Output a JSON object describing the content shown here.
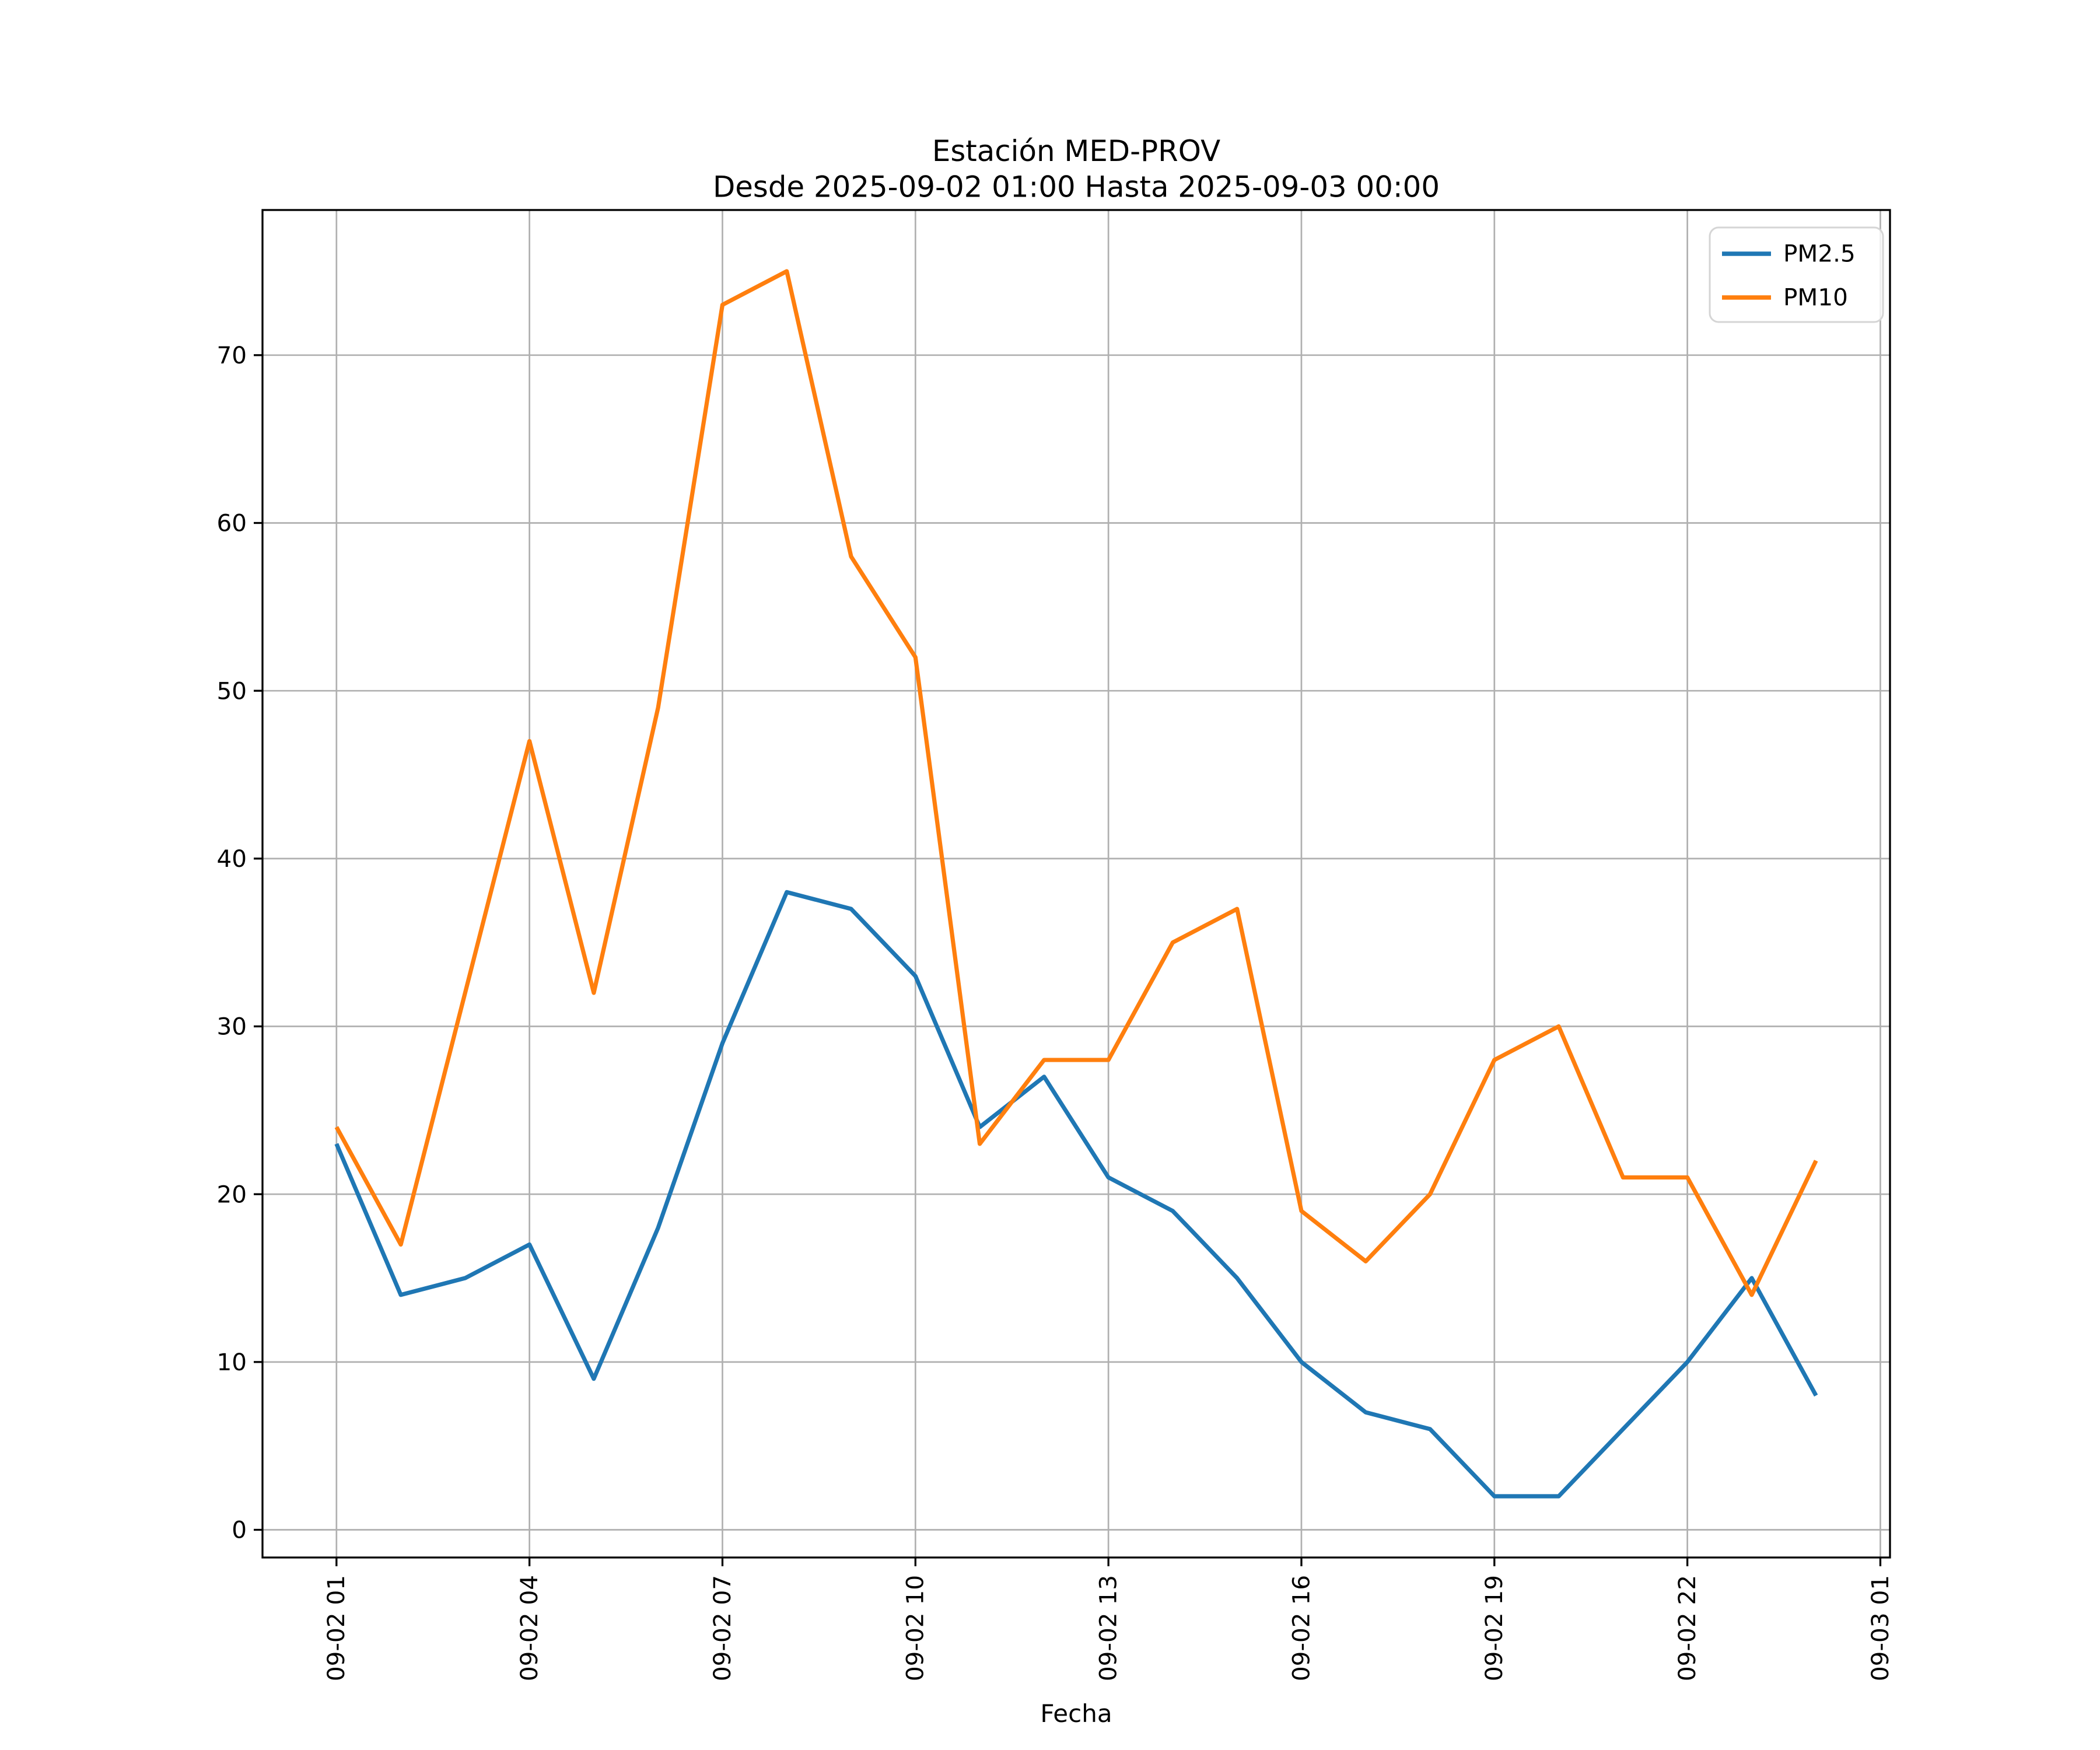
{
  "title": {
    "line1": "Estación MED-PROV",
    "line2": "Desde 2025-09-02 01:00 Hasta 2025-09-03 00:00"
  },
  "chart_data": {
    "type": "line",
    "title": "Estación MED-PROV",
    "subtitle": "Desde 2025-09-02 01:00 Hasta 2025-09-03 00:00",
    "xlabel": "Fecha",
    "ylabel": "",
    "grid": true,
    "legend_position": "upper right",
    "x": [
      "2025-09-02 01:00",
      "2025-09-02 02:00",
      "2025-09-02 03:00",
      "2025-09-02 04:00",
      "2025-09-02 05:00",
      "2025-09-02 06:00",
      "2025-09-02 07:00",
      "2025-09-02 08:00",
      "2025-09-02 09:00",
      "2025-09-02 10:00",
      "2025-09-02 11:00",
      "2025-09-02 12:00",
      "2025-09-02 13:00",
      "2025-09-02 14:00",
      "2025-09-02 15:00",
      "2025-09-02 16:00",
      "2025-09-02 17:00",
      "2025-09-02 18:00",
      "2025-09-02 19:00",
      "2025-09-02 20:00",
      "2025-09-02 21:00",
      "2025-09-02 22:00",
      "2025-09-02 23:00",
      "2025-09-03 00:00"
    ],
    "series": [
      {
        "name": "PM2.5",
        "color": "#1f77b4",
        "values": [
          23,
          14,
          15,
          17,
          9,
          18,
          29,
          38,
          37,
          33,
          24,
          27,
          21,
          19,
          15,
          10,
          7,
          6,
          2,
          2,
          6,
          10,
          15,
          8
        ]
      },
      {
        "name": "PM10",
        "color": "#ff7f0e",
        "values": [
          24,
          17,
          32,
          47,
          32,
          49,
          73,
          75,
          58,
          52,
          23,
          28,
          28,
          35,
          37,
          19,
          16,
          20,
          28,
          30,
          21,
          21,
          14,
          22
        ]
      }
    ],
    "x_tick_labels": [
      "09-02 01",
      "09-02 04",
      "09-02 07",
      "09-02 10",
      "09-02 13",
      "09-02 16",
      "09-02 19",
      "09-02 22",
      "09-03 01"
    ],
    "x_tick_hours": [
      0,
      3,
      6,
      9,
      12,
      15,
      18,
      21,
      24
    ],
    "y_ticks": [
      0,
      10,
      20,
      30,
      40,
      50,
      60,
      70
    ],
    "xlim_hours": [
      -1.15,
      24.15
    ],
    "ylim": [
      -1.65,
      78.65
    ],
    "grid_color": "#b0b0b0",
    "spine_color": "#000000"
  }
}
